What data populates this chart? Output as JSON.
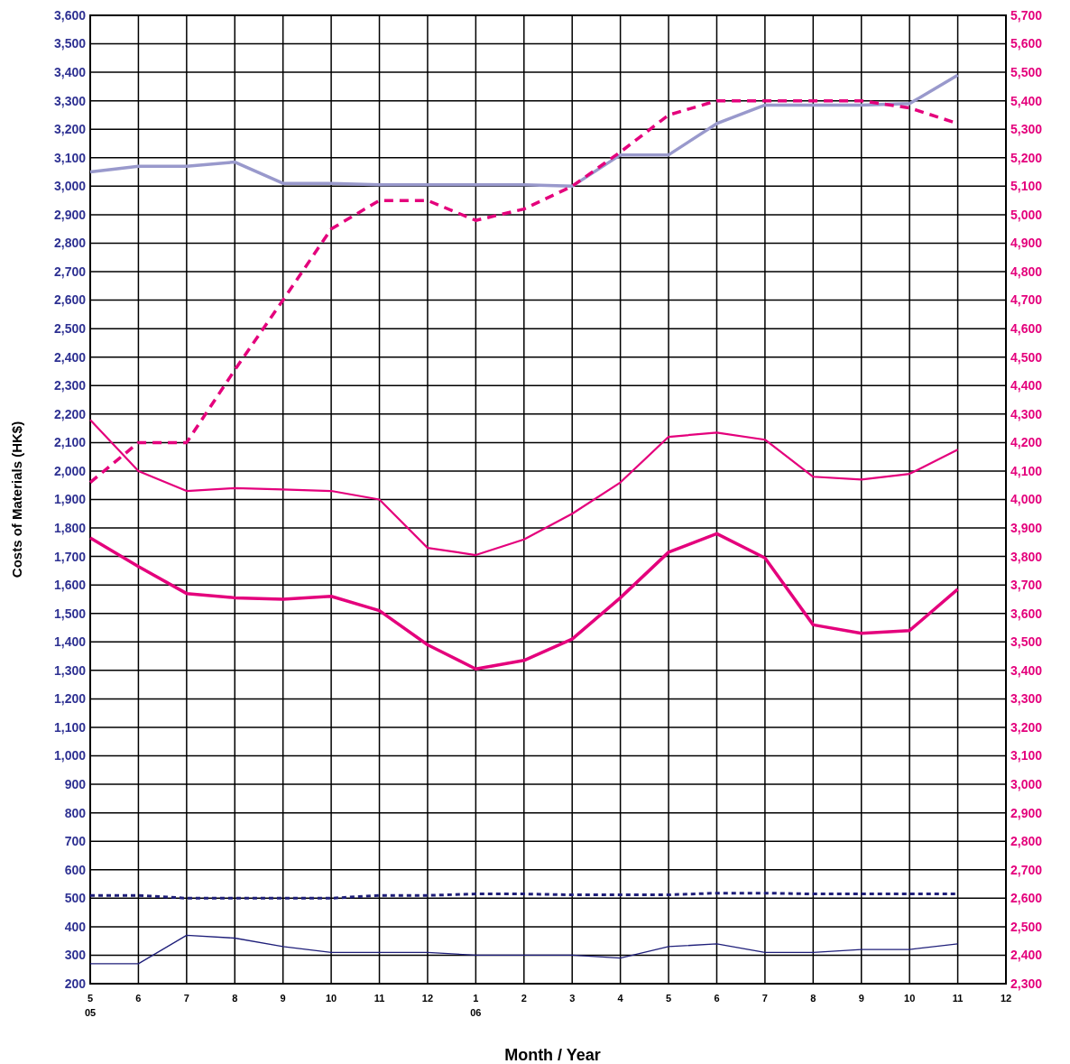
{
  "chart_data": {
    "type": "line",
    "xlabel": "Month / Year",
    "ylabel": "Costs of Materials (HK$)",
    "categories": [
      "5\n05",
      "6",
      "7",
      "8",
      "9",
      "10",
      "11",
      "12",
      "1\n06",
      "2",
      "3",
      "4",
      "5",
      "6",
      "7",
      "8",
      "9",
      "10",
      "11",
      "12"
    ],
    "ylim": [
      200,
      3600
    ],
    "yticks": [
      200,
      300,
      400,
      500,
      600,
      700,
      800,
      900,
      {
        "value": 1000,
        "label": "1,000"
      },
      {
        "value": 1100,
        "label": "1,100"
      },
      {
        "value": 1200,
        "label": "1,200"
      },
      {
        "value": 1300,
        "label": "1,300"
      },
      {
        "value": 1400,
        "label": "1,400"
      },
      {
        "value": 1500,
        "label": "1,500"
      },
      {
        "value": 1600,
        "label": "1,600"
      },
      {
        "value": 1700,
        "label": "1,700"
      },
      {
        "value": 1800,
        "label": "1,800"
      },
      {
        "value": 1900,
        "label": "1,900"
      },
      {
        "value": 2000,
        "label": "2,000"
      },
      {
        "value": 2100,
        "label": "2,100"
      },
      {
        "value": 2200,
        "label": "2,200"
      },
      {
        "value": 2300,
        "label": "2,300"
      },
      {
        "value": 2400,
        "label": "2,400"
      },
      {
        "value": 2500,
        "label": "2,500"
      },
      {
        "value": 2600,
        "label": "2,600"
      },
      {
        "value": 2700,
        "label": "2,700"
      },
      {
        "value": 2800,
        "label": "2,800"
      },
      {
        "value": 2900,
        "label": "2,900"
      },
      {
        "value": 3000,
        "label": "3,000"
      },
      {
        "value": 3100,
        "label": "3,100"
      },
      {
        "value": 3200,
        "label": "3,200"
      },
      {
        "value": 3300,
        "label": "3,300"
      },
      {
        "value": 3400,
        "label": "3,400"
      },
      {
        "value": 3500,
        "label": "3,500"
      },
      {
        "value": 3600,
        "label": "3,600"
      }
    ],
    "y2lim": [
      2300,
      5700
    ],
    "y2ticks": [
      {
        "value": 2300,
        "label": "2,300"
      },
      {
        "value": 2400,
        "label": "2,400"
      },
      {
        "value": 2500,
        "label": "2,500"
      },
      {
        "value": 2600,
        "label": "2,600"
      },
      {
        "value": 2700,
        "label": "2,700"
      },
      {
        "value": 2800,
        "label": "2,800"
      },
      {
        "value": 2900,
        "label": "2,900"
      },
      {
        "value": 3000,
        "label": "3,000"
      },
      {
        "value": 3100,
        "label": "3,100"
      },
      {
        "value": 3200,
        "label": "3,200"
      },
      {
        "value": 3300,
        "label": "3,300"
      },
      {
        "value": 3400,
        "label": "3,400"
      },
      {
        "value": 3500,
        "label": "3,500"
      },
      {
        "value": 3600,
        "label": "3,600"
      },
      {
        "value": 3700,
        "label": "3,700"
      },
      {
        "value": 3800,
        "label": "3,800"
      },
      {
        "value": 3900,
        "label": "3,900"
      },
      {
        "value": 4000,
        "label": "4,000"
      },
      {
        "value": 4100,
        "label": "4,100"
      },
      {
        "value": 4200,
        "label": "4,200"
      },
      {
        "value": 4300,
        "label": "4,300"
      },
      {
        "value": 4400,
        "label": "4,400"
      },
      {
        "value": 4500,
        "label": "4,500"
      },
      {
        "value": 4600,
        "label": "4,600"
      },
      {
        "value": 4700,
        "label": "4,700"
      },
      {
        "value": 4800,
        "label": "4,800"
      },
      {
        "value": 4900,
        "label": "4,900"
      },
      {
        "value": 5000,
        "label": "5,000"
      },
      {
        "value": 5100,
        "label": "5,100"
      },
      {
        "value": 5200,
        "label": "5,200"
      },
      {
        "value": 5300,
        "label": "5,300"
      },
      {
        "value": 5400,
        "label": "5,400"
      },
      {
        "value": 5500,
        "label": "5,500"
      },
      {
        "value": 5600,
        "label": "5,600"
      },
      {
        "value": 5700,
        "label": "5,700"
      }
    ],
    "grid": true,
    "series": [
      {
        "color": "#9999cc",
        "line_style": "solid",
        "values": [
          3050,
          3070,
          3070,
          3085,
          3010,
          3010,
          3005,
          3005,
          3005,
          3005,
          3000,
          3110,
          3110,
          3220,
          3285,
          3285,
          3285,
          3290,
          3390,
          null
        ]
      },
      {
        "color": "#e4007c",
        "axis": "y2",
        "line_style": "dashed",
        "values": [
          4060,
          4200,
          4200,
          4455,
          4700,
          4950,
          5050,
          5050,
          4980,
          5020,
          5100,
          5220,
          5350,
          5400,
          5400,
          5400,
          5400,
          5375,
          5320,
          null
        ]
      },
      {
        "color": "#e4007c",
        "axis": "y2",
        "line_style": "solid",
        "values": [
          4280,
          4100,
          4030,
          4040,
          4035,
          4030,
          4000,
          3830,
          3805,
          3860,
          3950,
          4060,
          4220,
          4235,
          4210,
          4080,
          4070,
          4090,
          4175,
          null
        ]
      },
      {
        "color": "#e4007c",
        "axis": "y2",
        "line_style": "solid",
        "values": [
          3865,
          3765,
          3670,
          3655,
          3650,
          3660,
          3610,
          3490,
          3405,
          3435,
          3510,
          3655,
          3815,
          3880,
          3795,
          3560,
          3530,
          3540,
          3685,
          null
        ]
      },
      {
        "color": "#1f1f7a",
        "line_style": "dotted",
        "values": [
          510,
          510,
          500,
          500,
          500,
          500,
          510,
          510,
          515,
          515,
          512,
          512,
          512,
          518,
          518,
          515,
          515,
          515,
          515,
          null
        ]
      },
      {
        "color": "#1f1f7a",
        "line_style": "solid",
        "values": [
          270,
          270,
          370,
          360,
          330,
          310,
          310,
          310,
          300,
          300,
          300,
          290,
          330,
          340,
          310,
          310,
          320,
          320,
          340,
          null
        ]
      }
    ]
  }
}
